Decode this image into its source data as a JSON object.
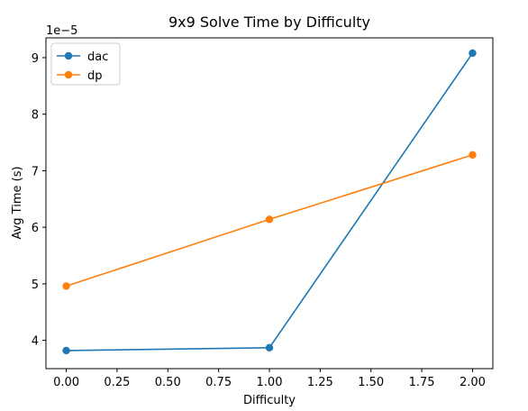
{
  "chart_data": {
    "type": "line",
    "title": "9x9 Solve Time by Difficulty",
    "xlabel": "Difficulty",
    "ylabel": "Avg Time (s)",
    "y_offset_label": "1e−5",
    "y_scale_factor": 1e-05,
    "x": [
      0.0,
      1.0,
      2.0
    ],
    "series": [
      {
        "name": "dac",
        "color": "#1f77b4",
        "values": [
          3.82e-05,
          3.87e-05,
          9.08e-05
        ]
      },
      {
        "name": "dp",
        "color": "#ff7f0e",
        "values": [
          4.96e-05,
          6.14e-05,
          7.28e-05
        ]
      }
    ],
    "xlim": [
      -0.1,
      2.1
    ],
    "ylim": [
      3.5e-05,
      9.35e-05
    ],
    "xticks": [
      0.0,
      0.25,
      0.5,
      0.75,
      1.0,
      1.25,
      1.5,
      1.75,
      2.0
    ],
    "xtick_labels": [
      "0.00",
      "0.25",
      "0.50",
      "0.75",
      "1.00",
      "1.25",
      "1.50",
      "1.75",
      "2.00"
    ],
    "yticks": [
      4,
      5,
      6,
      7,
      8,
      9
    ],
    "ytick_labels": [
      "4",
      "5",
      "6",
      "7",
      "8",
      "9"
    ],
    "grid": false,
    "legend_position": "top-left",
    "marker": "circle"
  }
}
